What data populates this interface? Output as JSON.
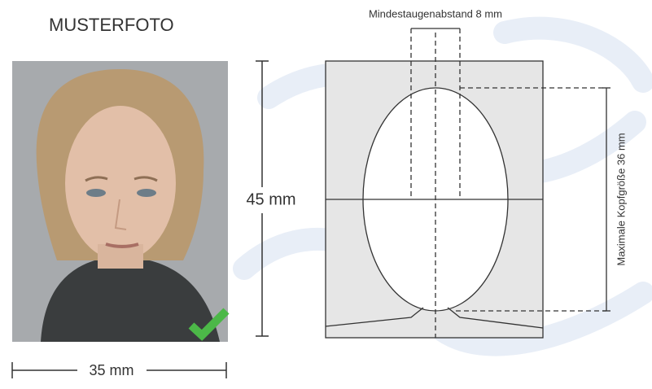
{
  "title": "MUSTERFOTO",
  "eye_distance_label": "Mindestaugenabstand 8 mm",
  "height_label": "45 mm",
  "width_label": "35 mm",
  "head_size_label": "Maximale Kopfgröße 36 mm"
}
